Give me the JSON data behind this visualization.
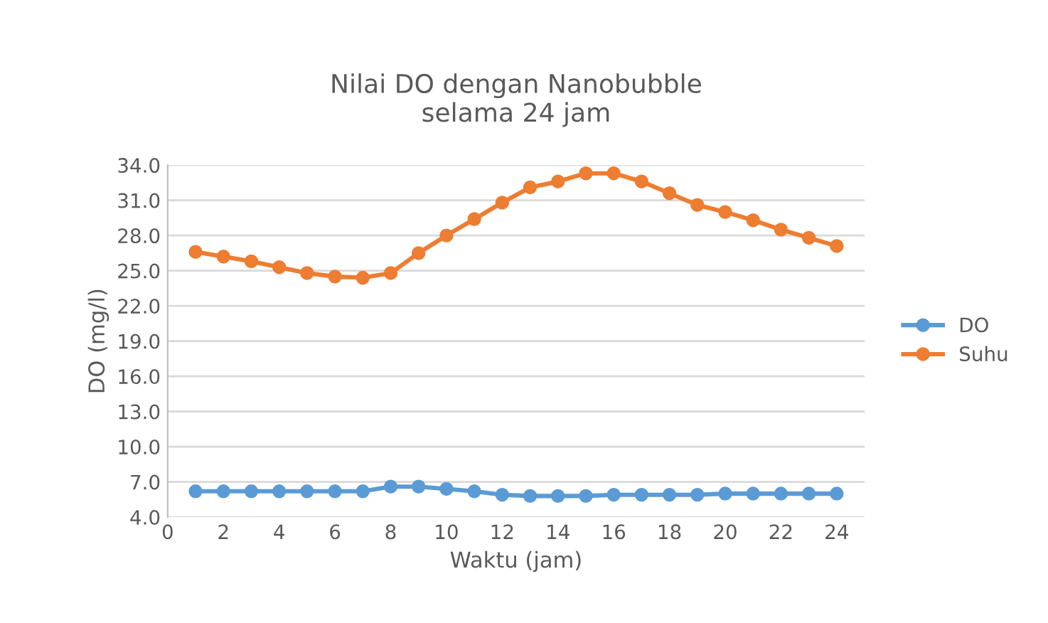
{
  "chart_data": {
    "type": "line",
    "title": "Nilai DO dengan Nanobubble\nselama 24 jam",
    "xlabel": "Waktu (jam)",
    "ylabel": "DO (mg/l)",
    "x": [
      1,
      2,
      3,
      4,
      5,
      6,
      7,
      8,
      9,
      10,
      11,
      12,
      13,
      14,
      15,
      16,
      17,
      18,
      19,
      20,
      21,
      22,
      23,
      24
    ],
    "series": [
      {
        "name": "DO",
        "color": "#5b9bd5",
        "values": [
          6.2,
          6.2,
          6.2,
          6.2,
          6.2,
          6.2,
          6.2,
          6.6,
          6.6,
          6.4,
          6.2,
          5.9,
          5.8,
          5.8,
          5.8,
          5.9,
          5.9,
          5.9,
          5.9,
          6.0,
          6.0,
          6.0,
          6.0,
          6.0
        ]
      },
      {
        "name": "Suhu",
        "color": "#ed7d31",
        "values": [
          26.6,
          26.2,
          25.8,
          25.3,
          24.8,
          24.5,
          24.4,
          24.8,
          26.5,
          28.0,
          29.4,
          30.8,
          32.1,
          32.6,
          33.3,
          33.3,
          32.6,
          31.6,
          30.6,
          30.0,
          29.3,
          28.5,
          27.8,
          27.1
        ]
      }
    ],
    "xlim": [
      0,
      25
    ],
    "xticks": [
      0,
      2,
      4,
      6,
      8,
      10,
      12,
      14,
      16,
      18,
      20,
      22,
      24
    ],
    "ylim": [
      4.0,
      34.0
    ],
    "yticks": [
      {
        "value": 4,
        "label": "4.0"
      },
      {
        "value": 7,
        "label": "7.0"
      },
      {
        "value": 10,
        "label": "10.0"
      },
      {
        "value": 13,
        "label": "13.0"
      },
      {
        "value": 16,
        "label": "16.0"
      },
      {
        "value": 19,
        "label": "19.0"
      },
      {
        "value": 22,
        "label": "22.0"
      },
      {
        "value": 25,
        "label": "25.0"
      },
      {
        "value": 28,
        "label": "28.0"
      },
      {
        "value": 31,
        "label": "31.0"
      },
      {
        "value": 34,
        "label": "34.0"
      }
    ],
    "grid": "y",
    "legend": "right",
    "marker": "circle",
    "line_style": "solid"
  }
}
